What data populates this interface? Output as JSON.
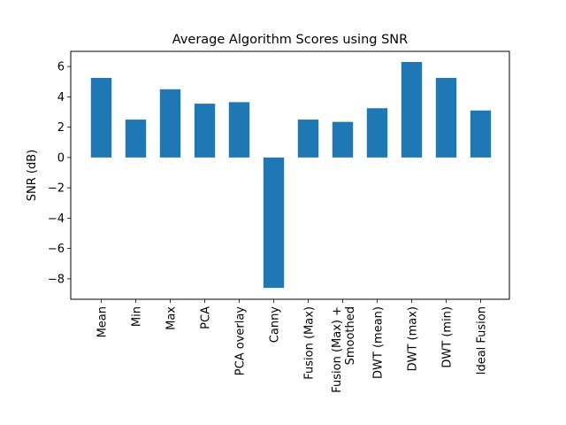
{
  "chart_data": {
    "type": "bar",
    "title": "Average Algorithm Scores using SNR",
    "xlabel": "",
    "ylabel": "SNR (dB)",
    "categories": [
      "Mean",
      "Min",
      "Max",
      "PCA",
      "PCA overlay",
      "Canny",
      "Fusion (Max)",
      "Fusion (Max) +\nSmoothed",
      "DWT (mean)",
      "DWT (max)",
      "DWT (min)",
      "Ideal Fusion"
    ],
    "values": [
      5.25,
      2.5,
      4.5,
      3.55,
      3.65,
      -8.6,
      2.5,
      2.35,
      3.25,
      6.3,
      5.25,
      3.1
    ],
    "ylim": [
      -9.35,
      7.0
    ],
    "yticks": [
      -8,
      -6,
      -4,
      -2,
      0,
      2,
      4,
      6
    ],
    "grid": false,
    "bar_color": "#1f77b4"
  }
}
